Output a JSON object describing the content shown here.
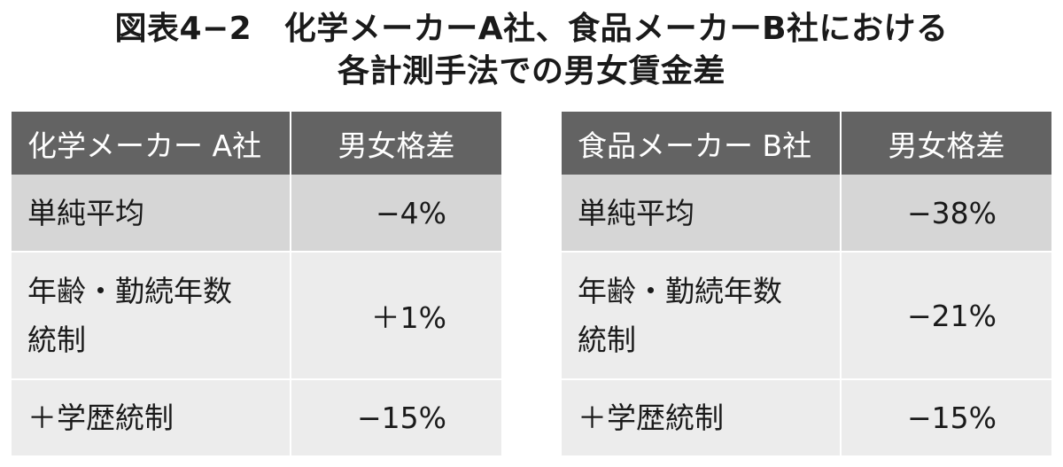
{
  "title": {
    "line1": "図表4−2　化学メーカーA社、食品メーカーB社における",
    "line2": "各計測手法での男女賃金差"
  },
  "tables": [
    {
      "company": "化学メーカー A社",
      "gap_header": "男女格差",
      "rows": [
        {
          "method": "単純平均",
          "gap": "−4%"
        },
        {
          "method": "年齢・勤続年数統制",
          "method_lines": [
            "年齢・勤続年数",
            "統制"
          ],
          "gap": "＋1%"
        },
        {
          "method": "＋学歴統制",
          "gap": "−15%"
        }
      ]
    },
    {
      "company": "食品メーカー B社",
      "gap_header": "男女格差",
      "rows": [
        {
          "method": "単純平均",
          "gap": "−38%"
        },
        {
          "method": "年齢・勤続年数統制",
          "method_lines": [
            "年齢・勤続年数",
            "統制"
          ],
          "gap": "−21%"
        },
        {
          "method": "＋学歴統制",
          "gap": "−15%"
        }
      ]
    }
  ]
}
